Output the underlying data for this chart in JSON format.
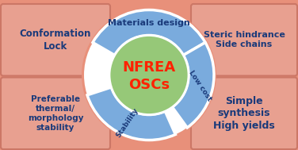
{
  "background_color": "#e8907a",
  "outer_circle_color": "#7aabdd",
  "inner_circle_color": "#96c878",
  "box_fill_color": "#e8a090",
  "box_edge_color": "#cc7766",
  "center_text_line1": "NFREA",
  "center_text_line2": "OSCs",
  "center_text_color": "#ff2200",
  "segment_labels": [
    "Materials design",
    "Stability",
    "Low cost"
  ],
  "segment_label_color": "#1a3a7a",
  "box_texts": [
    [
      "Conformation",
      "Lock"
    ],
    [
      "Steric hindrance",
      "Side chains"
    ],
    [
      "Preferable",
      "thermal/",
      "morphology",
      "stability"
    ],
    [
      "Simple",
      "synthesis",
      "High yields"
    ]
  ],
  "box_text_color": "#1a3a7a",
  "figsize": [
    3.76,
    1.89
  ],
  "dpi": 100
}
